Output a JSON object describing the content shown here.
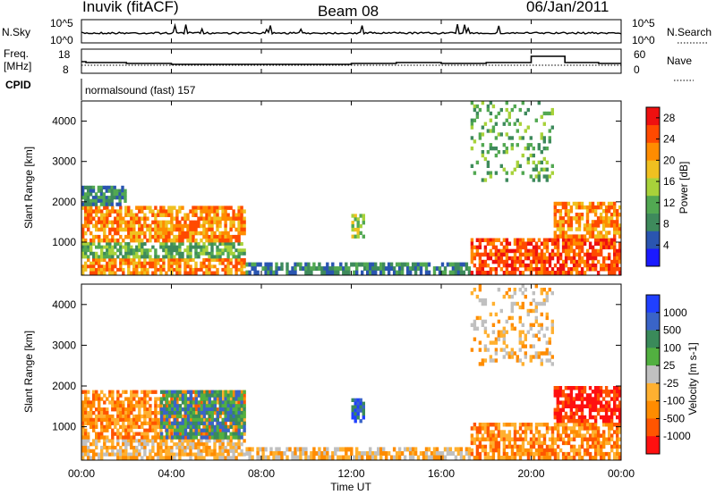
{
  "header": {
    "radar": "Inuvik (fitACF)",
    "beam": "Beam 08",
    "date": "06/Jan/2011"
  },
  "noise_panel": {
    "left_label": "N.Sky",
    "right_label": "N.Search",
    "left_ticks": [
      "10^5",
      "10^0"
    ],
    "right_ticks": [
      "10^5",
      "10^0"
    ]
  },
  "freq_panel": {
    "left_label_1": "Freq.",
    "left_label_2": "[MHz]",
    "right_label": "Nave",
    "left_ticks": [
      "18",
      "8"
    ],
    "right_ticks": [
      "60",
      "0"
    ]
  },
  "cpid": {
    "label": "CPID",
    "value": "normalsound (fast) 157"
  },
  "colors": {
    "power_scale": [
      "#1a1aff",
      "#2a55b0",
      "#3e8a5c",
      "#52a852",
      "#a8d23a",
      "#f0c020",
      "#ff8c00",
      "#ff4a00",
      "#ee1010"
    ],
    "velocity_scale": [
      "#2040ff",
      "#3a64c8",
      "#3a8a5a",
      "#52b040",
      "#c0c0c0",
      "#ffb030",
      "#ff8c00",
      "#ff5500",
      "#ff1010"
    ]
  },
  "chart_data": [
    {
      "type": "heatmap",
      "panel": "power",
      "ylabel": "Slant Range [km]",
      "ylim": [
        180,
        4500
      ],
      "y_ticks": [
        "1000",
        "2000",
        "3000",
        "4000"
      ],
      "y_tick_values": [
        1000,
        2000,
        3000,
        4000
      ],
      "colorbar": {
        "label": "Power [dB]",
        "ticks": [
          "4",
          "8",
          "12",
          "16",
          "20",
          "24",
          "28"
        ],
        "tick_values": [
          4,
          8,
          12,
          16,
          20,
          24,
          28
        ],
        "range": [
          0,
          30
        ]
      },
      "regions": [
        {
          "t": [
            0.0,
            7.3
          ],
          "r": [
            200,
            600
          ],
          "level": 24
        },
        {
          "t": [
            0.0,
            7.3
          ],
          "r": [
            600,
            1000
          ],
          "level": 12
        },
        {
          "t": [
            0.0,
            7.3
          ],
          "r": [
            1000,
            1900
          ],
          "level": 22
        },
        {
          "t": [
            0.0,
            2.0
          ],
          "r": [
            1900,
            2400
          ],
          "level": 8
        },
        {
          "t": [
            7.3,
            17.3
          ],
          "r": [
            200,
            500
          ],
          "level": 6
        },
        {
          "t": [
            12.0,
            12.6
          ],
          "r": [
            1100,
            1700
          ],
          "level": 14
        },
        {
          "t": [
            17.3,
            24.0
          ],
          "r": [
            200,
            1100
          ],
          "level": 26
        },
        {
          "t": [
            21.0,
            24.0
          ],
          "r": [
            1100,
            2000
          ],
          "level": 24
        },
        {
          "t": [
            17.3,
            21.0
          ],
          "r": [
            2500,
            4500
          ],
          "level": 10
        }
      ]
    },
    {
      "type": "heatmap",
      "panel": "velocity",
      "ylabel": "Slant Range [km]",
      "ylim": [
        180,
        4500
      ],
      "y_ticks": [
        "1000",
        "2000",
        "3000",
        "4000"
      ],
      "y_tick_values": [
        1000,
        2000,
        3000,
        4000
      ],
      "colorbar": {
        "label": "Velocity [m s-1]",
        "ticks": [
          "1000",
          "500",
          "100",
          "25",
          "-25",
          "-100",
          "-500",
          "-1000"
        ],
        "tick_values": [
          1000,
          500,
          100,
          25,
          -25,
          -100,
          -500,
          -1000
        ]
      },
      "regions": [
        {
          "t": [
            0.0,
            7.3
          ],
          "r": [
            200,
            700
          ],
          "level": -100
        },
        {
          "t": [
            0.0,
            7.3
          ],
          "r": [
            700,
            1900
          ],
          "level": -300
        },
        {
          "t": [
            3.5,
            7.3
          ],
          "r": [
            700,
            1900
          ],
          "level": 150
        },
        {
          "t": [
            7.3,
            17.3
          ],
          "r": [
            200,
            500
          ],
          "level": -50
        },
        {
          "t": [
            12.0,
            12.6
          ],
          "r": [
            1100,
            1700
          ],
          "level": 400
        },
        {
          "t": [
            17.3,
            24.0
          ],
          "r": [
            200,
            1100
          ],
          "level": -150
        },
        {
          "t": [
            21.0,
            24.0
          ],
          "r": [
            1100,
            2000
          ],
          "level": -1000
        },
        {
          "t": [
            17.3,
            21.0
          ],
          "r": [
            2500,
            4500
          ],
          "level": -100
        }
      ]
    }
  ],
  "x_axis": {
    "xlabel": "Time UT",
    "xlim": [
      0,
      24
    ],
    "ticks": [
      "00:00",
      "04:00",
      "08:00",
      "12:00",
      "16:00",
      "20:00",
      "00:00"
    ],
    "tick_values": [
      0,
      4,
      8,
      12,
      16,
      20,
      24
    ]
  }
}
